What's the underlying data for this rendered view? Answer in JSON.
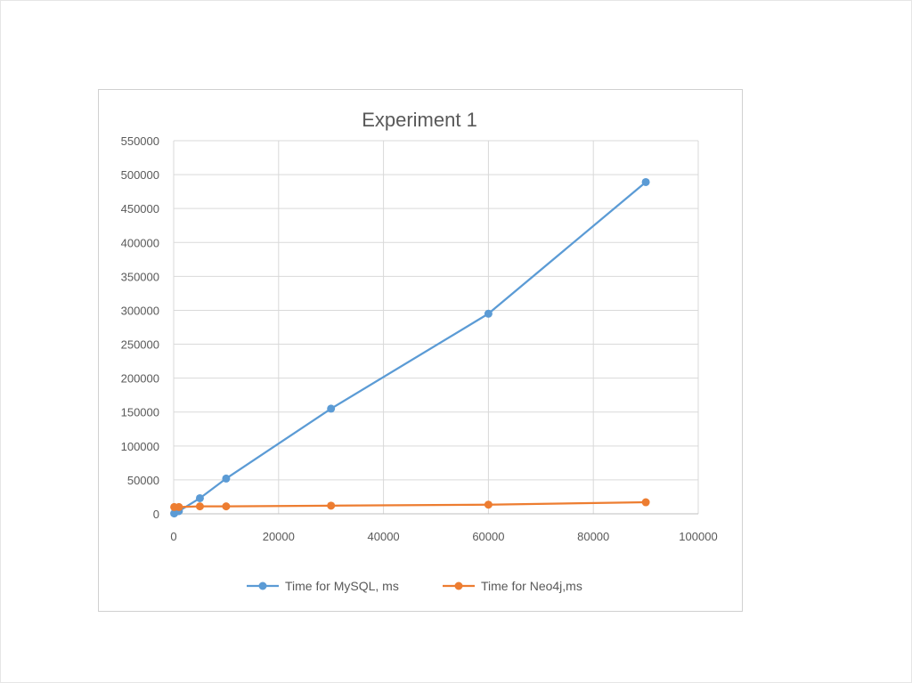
{
  "chart_data": {
    "type": "scatter",
    "title": "Experiment 1",
    "xlabel": "",
    "ylabel": "",
    "xlim": [
      0,
      100000
    ],
    "ylim": [
      0,
      550000
    ],
    "x_ticks": [
      0,
      20000,
      40000,
      60000,
      80000,
      100000
    ],
    "y_ticks": [
      0,
      50000,
      100000,
      150000,
      200000,
      250000,
      300000,
      350000,
      400000,
      450000,
      500000,
      550000
    ],
    "x_tick_labels": [
      "0",
      "20000",
      "40000",
      "60000",
      "80000",
      "100000"
    ],
    "y_tick_labels": [
      "0",
      "50000",
      "100000",
      "150000",
      "200000",
      "250000",
      "300000",
      "350000",
      "400000",
      "450000",
      "500000",
      "550000"
    ],
    "grid": true,
    "legend_position": "bottom",
    "series": [
      {
        "name": "Time for MySQL, ms",
        "color": "#5b9bd5",
        "x": [
          100,
          1000,
          5000,
          10000,
          30000,
          60000,
          90000
        ],
        "y": [
          500,
          4000,
          23000,
          52000,
          155000,
          295000,
          489000
        ]
      },
      {
        "name": "Time for Neo4j,ms",
        "color": "#ed7d31",
        "x": [
          100,
          1000,
          5000,
          10000,
          30000,
          60000,
          90000
        ],
        "y": [
          10000,
          10000,
          11000,
          11000,
          12000,
          13500,
          17000
        ]
      }
    ]
  }
}
